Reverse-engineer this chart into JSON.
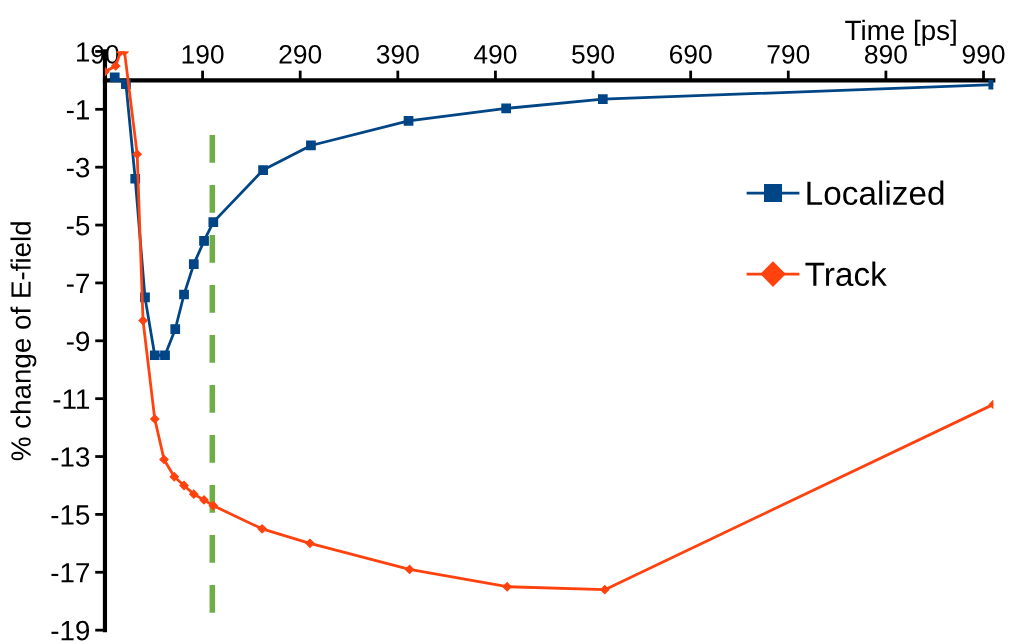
{
  "chart_data": {
    "type": "line",
    "xlabel": "Time [ps]",
    "ylabel": "% change of E-field",
    "xlim": [
      90,
      1000
    ],
    "xticks": [
      90,
      190,
      290,
      390,
      490,
      590,
      690,
      790,
      890,
      990
    ],
    "ylim": [
      -19,
      1
    ],
    "yticks": [
      1,
      -1,
      -3,
      -5,
      -7,
      -9,
      -11,
      -13,
      -15,
      -17,
      -19
    ],
    "grid": false,
    "legend": "right",
    "series": [
      {
        "name": "Localized",
        "color": "#004586",
        "marker": "square",
        "x": [
          100,
          111.5,
          121,
          131,
          141,
          151.5,
          162,
          171,
          181,
          191.5,
          201,
          252,
          301,
          401,
          501,
          600,
          1000
        ],
        "values": [
          0.1,
          -0.13,
          -3.4,
          -7.5,
          -9.5,
          -9.5,
          -8.6,
          -7.4,
          -6.35,
          -5.55,
          -4.9,
          -3.1,
          -2.25,
          -1.4,
          -0.97,
          -0.65,
          -0.15
        ]
      },
      {
        "name": "Track",
        "color": "#ff420e",
        "marker": "diamond",
        "x": [
          90,
          101,
          106,
          110,
          123,
          129,
          141,
          150.5,
          161,
          171,
          181,
          191.5,
          201,
          251,
          300,
          402,
          502,
          602,
          1000
        ],
        "values": [
          0.3,
          0.5,
          1,
          1,
          -2.55,
          -8.3,
          -11.7,
          -13.1,
          -13.7,
          -14.0,
          -14.3,
          -14.5,
          -14.7,
          -15.5,
          -16.0,
          -16.9,
          -17.5,
          -17.6,
          -11.2
        ]
      }
    ],
    "ref_lines": [
      {
        "axis": "x",
        "value": 200,
        "color": "#70ad47",
        "line_style": "dashed"
      }
    ]
  }
}
